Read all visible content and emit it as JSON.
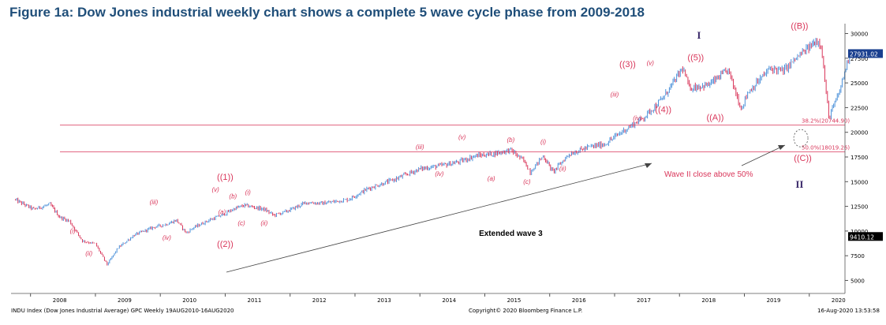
{
  "title": "Figure 1a: Dow Jones industrial weekly chart shows a complete 5 wave cycle phase from 2009-2018",
  "footer": {
    "left": "INDU Index (Dow Jones Industrial Average) GPC Weekly 19AUG2010-16AUG2020",
    "center": "Copyright© 2020 Bloomberg Finance L.P.",
    "right": "16-Aug-2020 13:53:58"
  },
  "colors": {
    "up_bar": "#4a90d9",
    "down_bar": "#d9365a",
    "wave_label": "#d9365a",
    "roman_label": "#3b2a6b",
    "fib_line": "#d9365a",
    "title": "#1f4e79"
  },
  "chart_data": {
    "type": "line",
    "title": "",
    "xlabel": "",
    "ylabel": "",
    "x_ticks": [
      "2008",
      "2009",
      "2010",
      "2011",
      "2012",
      "2013",
      "2014",
      "2015",
      "2016",
      "2017",
      "2018",
      "2019",
      "2020"
    ],
    "y_ticks": [
      5000,
      7500,
      10000,
      12500,
      15000,
      17500,
      20000,
      22500,
      25000,
      27500,
      30000
    ],
    "ylim": [
      4000,
      31000
    ],
    "xlim": [
      2007.7,
      2020.55
    ],
    "grid": false,
    "series": [
      {
        "type": "weekly_ohlc",
        "x": [
          2007.75,
          2008.05,
          2008.3,
          2008.45,
          2008.6,
          2008.8,
          2009.0,
          2009.18,
          2009.35,
          2009.6,
          2009.9,
          2010.1,
          2010.25,
          2010.4,
          2010.5,
          2010.75,
          2010.95,
          2011.15,
          2011.3,
          2011.45,
          2011.6,
          2011.75,
          2011.95,
          2012.25,
          2012.5,
          2012.9,
          2013.2,
          2013.6,
          2014.0,
          2014.3,
          2014.6,
          2014.85,
          2015.1,
          2015.4,
          2015.6,
          2015.7,
          2015.9,
          2016.05,
          2016.3,
          2016.6,
          2016.85,
          2017.1,
          2017.45,
          2017.75,
          2018.05,
          2018.15,
          2018.45,
          2018.75,
          2018.95,
          2019.05,
          2019.4,
          2019.6,
          2019.8,
          2020.05,
          2020.1,
          2020.18,
          2020.3,
          2020.45,
          2020.62
        ],
        "values": [
          13200,
          12200,
          12700,
          11400,
          11000,
          9000,
          8700,
          6600,
          8300,
          9600,
          10400,
          10700,
          11100,
          9800,
          10300,
          11100,
          11600,
          12300,
          12600,
          12400,
          12200,
          11600,
          12000,
          12900,
          12800,
          13200,
          14300,
          15200,
          16300,
          16600,
          17000,
          17600,
          17800,
          18200,
          17100,
          16000,
          17600,
          16000,
          17800,
          18500,
          18800,
          20000,
          21500,
          23500,
          26500,
          24500,
          24800,
          26300,
          22400,
          24000,
          26500,
          26200,
          27500,
          28900,
          29300,
          29000,
          21500,
          23800,
          27900
        ]
      }
    ],
    "price_labels": {
      "current": "27931.02",
      "low": "9410.12"
    },
    "fib_levels": [
      {
        "label": "38.2%(20744.90)",
        "value": 20744.9
      },
      {
        "label": "50.0%(18019.26)",
        "value": 18019.26
      }
    ],
    "wave_labels": [
      {
        "text": "((1))",
        "x": 2011.0,
        "y": 15200,
        "size": "large"
      },
      {
        "text": "(v)",
        "x": 2010.85,
        "y": 14000,
        "size": "small"
      },
      {
        "text": "(iii)",
        "x": 2009.9,
        "y": 12700,
        "size": "small"
      },
      {
        "text": "(i)",
        "x": 2008.65,
        "y": 9800,
        "size": "small"
      },
      {
        "text": "(ii)",
        "x": 2008.9,
        "y": 7500,
        "size": "small"
      },
      {
        "text": "(iv)",
        "x": 2010.1,
        "y": 9100,
        "size": "small"
      },
      {
        "text": "(a)",
        "x": 2010.95,
        "y": 11700,
        "size": "small"
      },
      {
        "text": "(b)",
        "x": 2011.12,
        "y": 13300,
        "size": "small"
      },
      {
        "text": "(c)",
        "x": 2011.25,
        "y": 10600,
        "size": "small"
      },
      {
        "text": "((2))",
        "x": 2011.0,
        "y": 8400,
        "size": "large"
      },
      {
        "text": "(i)",
        "x": 2011.35,
        "y": 13700,
        "size": "small"
      },
      {
        "text": "(ii)",
        "x": 2011.6,
        "y": 10600,
        "size": "small"
      },
      {
        "text": "(iii)",
        "x": 2014.0,
        "y": 18300,
        "size": "small"
      },
      {
        "text": "(iv)",
        "x": 2014.3,
        "y": 15600,
        "size": "small"
      },
      {
        "text": "(v)",
        "x": 2014.65,
        "y": 19300,
        "size": "small"
      },
      {
        "text": "(a)",
        "x": 2015.1,
        "y": 15100,
        "size": "small"
      },
      {
        "text": "(b)",
        "x": 2015.4,
        "y": 19000,
        "size": "small"
      },
      {
        "text": "(c)",
        "x": 2015.65,
        "y": 14800,
        "size": "small"
      },
      {
        "text": "(i)",
        "x": 2015.9,
        "y": 18800,
        "size": "small"
      },
      {
        "text": "(ii)",
        "x": 2016.2,
        "y": 16100,
        "size": "small"
      },
      {
        "text": "(iii)",
        "x": 2017.0,
        "y": 23600,
        "size": "small"
      },
      {
        "text": "((3))",
        "x": 2017.2,
        "y": 26600,
        "size": "large"
      },
      {
        "text": "(v)",
        "x": 2017.55,
        "y": 26800,
        "size": "small"
      },
      {
        "text": "(iv)",
        "x": 2017.35,
        "y": 21200,
        "size": "small"
      },
      {
        "text": "((4))",
        "x": 2017.75,
        "y": 22000,
        "size": "large"
      },
      {
        "text": "((5))",
        "x": 2018.25,
        "y": 27300,
        "size": "large"
      },
      {
        "text": "((A))",
        "x": 2018.55,
        "y": 21200,
        "size": "large"
      },
      {
        "text": "((B))",
        "x": 2019.85,
        "y": 30500,
        "size": "large"
      },
      {
        "text": "((C))",
        "x": 2019.9,
        "y": 17100,
        "size": "large"
      }
    ],
    "roman_labels": [
      {
        "text": "I",
        "x": 2018.3,
        "y": 29500
      },
      {
        "text": "II",
        "x": 2019.85,
        "y": 14400
      }
    ],
    "annotations": [
      {
        "text": "Extended wave 3",
        "x": 2015.4,
        "y": 9500
      },
      {
        "text": "Wave II close above  50%",
        "x": 2018.45,
        "y": 15500
      }
    ]
  }
}
